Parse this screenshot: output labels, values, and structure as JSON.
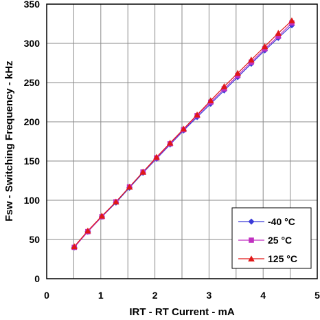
{
  "chart_data": {
    "type": "line",
    "xlabel": "IRT - RT Current - mA",
    "ylabel": "Fsw - Switching Frequency - kHz",
    "xlim": [
      0,
      5
    ],
    "ylim": [
      0,
      350
    ],
    "xticks": [
      0,
      1,
      2,
      3,
      4,
      5
    ],
    "yticks": [
      0,
      50,
      100,
      150,
      200,
      250,
      300,
      350
    ],
    "x_grid_step": 0.5,
    "grid": true,
    "legend_position": "bottom-right",
    "x": [
      0.51,
      0.76,
      1.02,
      1.28,
      1.53,
      1.78,
      2.03,
      2.28,
      2.53,
      2.78,
      3.03,
      3.28,
      3.53,
      3.78,
      4.03,
      4.28,
      4.53
    ],
    "series": [
      {
        "name": "-40 °C",
        "color": "#3a3ad8",
        "marker": "diamond",
        "values": [
          40,
          60,
          79,
          97,
          116,
          135,
          153,
          171,
          189,
          206,
          223,
          240,
          257,
          274,
          291,
          307,
          323
        ]
      },
      {
        "name": "25 °C",
        "color": "#c030c0",
        "marker": "square",
        "values": [
          40,
          60,
          79,
          98,
          117,
          136,
          154,
          172,
          190,
          208,
          225,
          242,
          259,
          276,
          293,
          309,
          326
        ]
      },
      {
        "name": "125 °C",
        "color": "#e01818",
        "marker": "triangle",
        "values": [
          41,
          61,
          80,
          98,
          117,
          136,
          155,
          173,
          191,
          209,
          227,
          245,
          262,
          279,
          296,
          313,
          329
        ]
      }
    ]
  }
}
